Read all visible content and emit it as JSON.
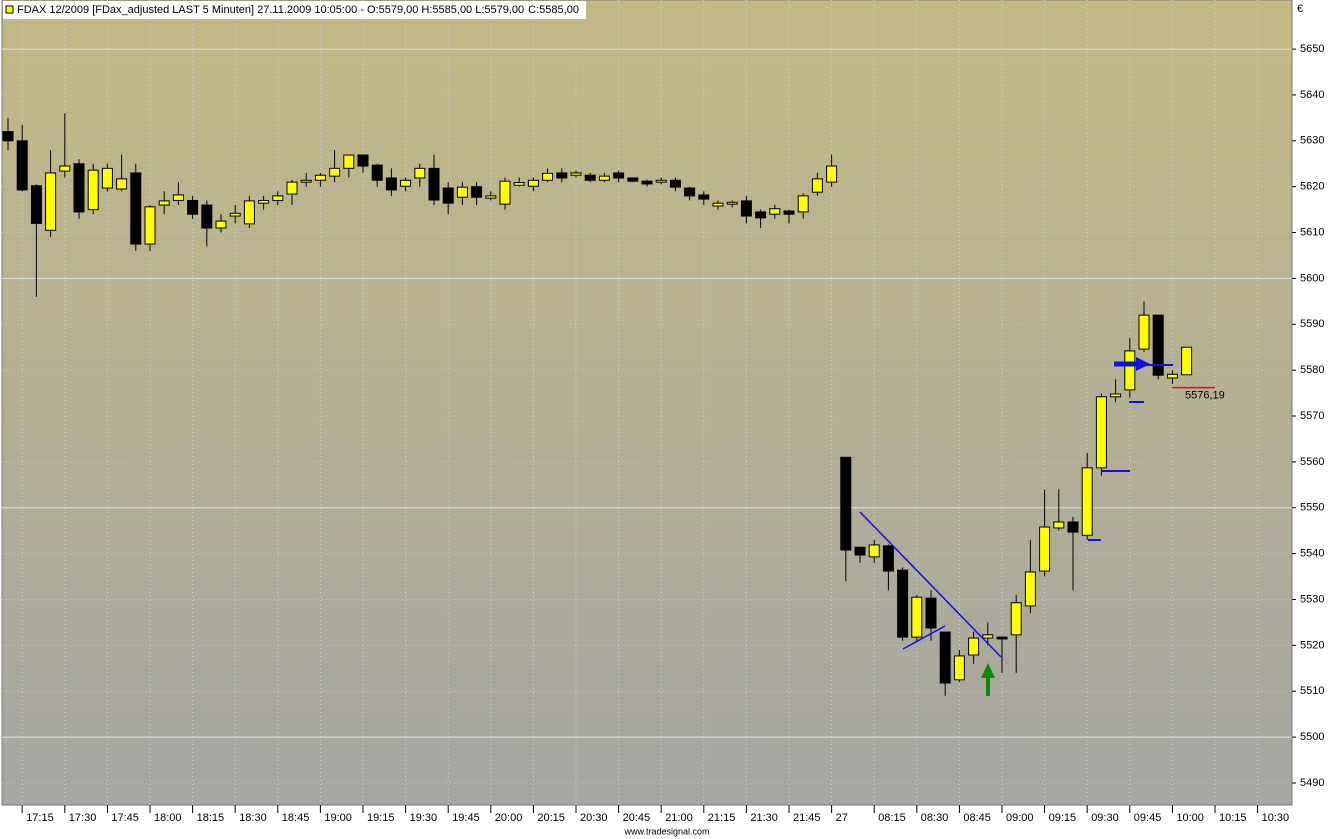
{
  "chart_data": {
    "type": "candlestick",
    "title": "FDAX 12/2009 [FDax_adjusted LAST 5 Minuten] 27.11.2009 10:05:00 - O:5579,00 H:5585,00 L:5579,00",
    "last_close": "C:5585,00",
    "last_close_color": "#00b000",
    "currency": "€",
    "footer": "www.tradesignal.com",
    "categories": [
      null,
      "17:15",
      null,
      null,
      "17:30",
      null,
      null,
      "17:45",
      null,
      null,
      "18:00",
      null,
      null,
      "18:15",
      null,
      null,
      "18:30",
      null,
      null,
      "18:45",
      null,
      null,
      "19:00",
      null,
      null,
      "19:15",
      null,
      null,
      "19:30",
      null,
      null,
      "19:45",
      null,
      null,
      "20:00",
      null,
      null,
      "20:15",
      null,
      null,
      "20:30",
      null,
      null,
      "20:45",
      null,
      null,
      "21:00",
      null,
      null,
      "21:15",
      null,
      null,
      "21:30",
      null,
      null,
      "21:45",
      null,
      null,
      "27",
      null,
      null,
      "08:15",
      null,
      null,
      "08:30",
      null,
      null,
      "08:45",
      null,
      null,
      "09:00",
      null,
      null,
      "09:15",
      null,
      null,
      "09:30",
      null,
      null,
      "09:45",
      null,
      null,
      "10:00",
      null,
      null,
      "10:15",
      null,
      null,
      "10:30",
      null,
      null
    ],
    "open": [
      5632,
      5630,
      5620.2,
      5610.5,
      5623.4,
      5625,
      5615,
      5619.7,
      5619.5,
      5623,
      5607.5,
      5616,
      5617,
      5617,
      5616,
      5611,
      5613.6,
      5611.9,
      5616.4,
      5617,
      5618.4,
      5621,
      5621.4,
      5622.3,
      5624,
      5626.9,
      5624.7,
      5621.9,
      5620.1,
      5621.9,
      5624,
      5619.7,
      5617.7,
      5620,
      5617.5,
      5616.2,
      5620.3,
      5620.1,
      5621.4,
      5623,
      5622.5,
      5622.5,
      5621.4,
      5623,
      5621.9,
      5621.2,
      5621,
      5621.4,
      5619.7,
      5618.2,
      5615.8,
      5616.2,
      5616.9,
      5614.5,
      5614,
      5614.7,
      5614.5,
      5618.8,
      5621,
      5561,
      5541.4,
      5539.3,
      5541.7,
      5536.4,
      5521.8,
      5530.3,
      5522.9,
      5512.5,
      5517.9,
      5521.6,
      5521.8,
      5522.3,
      5528.6,
      5536.2,
      5545.6,
      5546.9,
      5544,
      5558.7,
      5574.2,
      5575.7,
      5584.6,
      5592,
      5578.3,
      5579,
      null,
      null,
      null,
      null,
      null,
      null,
      null
    ],
    "high": [
      5635,
      5633.5,
      5620.5,
      5628,
      5636,
      5626,
      5625,
      5625,
      5627,
      5625,
      5616,
      5619,
      5621,
      5618,
      5617,
      5614,
      5616,
      5618,
      5618,
      5619,
      5621.5,
      5623,
      5623,
      5628,
      5627,
      5627,
      5625,
      5624,
      5622,
      5625,
      5627,
      5621,
      5621,
      5621,
      5619,
      5622,
      5622,
      5622,
      5624,
      5624,
      5623.5,
      5623,
      5623,
      5623.5,
      5622,
      5621.5,
      5622,
      5622,
      5620,
      5619,
      5617,
      5617,
      5618,
      5615,
      5616,
      5615,
      5618.5,
      5623,
      5627,
      5561,
      5541.5,
      5543,
      5542,
      5537,
      5531,
      5532,
      5523,
      5519,
      5523,
      5525,
      5522,
      5531,
      5543,
      5554,
      5554,
      5548,
      5562,
      5575,
      5578,
      5587,
      5595,
      5592,
      5580,
      5585,
      null,
      null,
      null,
      null,
      null,
      null,
      null
    ],
    "low": [
      5628,
      5619,
      5596,
      5609,
      5622,
      5613,
      5614,
      5619,
      5619,
      5606,
      5606,
      5614,
      5616,
      5613,
      5607,
      5610,
      5612,
      5611,
      5615,
      5616,
      5616,
      5620,
      5620,
      5621,
      5622,
      5623,
      5620,
      5618,
      5619,
      5620,
      5616,
      5614,
      5616,
      5616,
      5617,
      5615,
      5620,
      5619,
      5621,
      5621,
      5622,
      5621,
      5621,
      5621,
      5621,
      5620,
      5620.5,
      5619,
      5617,
      5616,
      5615,
      5615.5,
      5612,
      5611,
      5613,
      5612,
      5613,
      5618,
      5620,
      5534,
      5538,
      5538,
      5532,
      5521,
      5521,
      5521,
      5509,
      5512,
      5516,
      5520,
      5514,
      5514,
      5527,
      5535,
      5545,
      5532,
      5543,
      5557,
      5573,
      5574,
      5584,
      5578,
      5577,
      5579,
      null,
      null,
      null,
      null,
      null,
      null,
      null
    ],
    "close": [
      5630,
      5619.3,
      5612,
      5623,
      5624.5,
      5614.5,
      5623.6,
      5624,
      5621.7,
      5607.5,
      5615.6,
      5616.9,
      5618.2,
      5614,
      5611,
      5612.5,
      5614.2,
      5616.9,
      5617,
      5618,
      5621,
      5621.4,
      5622.5,
      5624,
      5626.9,
      5624.5,
      5621.4,
      5619.3,
      5621.4,
      5624,
      5617.1,
      5616.4,
      5619.9,
      5617.7,
      5618,
      5621.2,
      5620.9,
      5621.4,
      5622.9,
      5621.9,
      5623,
      5621.4,
      5622.3,
      5621.9,
      5621.2,
      5620.6,
      5621.4,
      5619.9,
      5618,
      5617.3,
      5616.4,
      5616.6,
      5613.6,
      5613.2,
      5615.2,
      5614,
      5618,
      5621.7,
      5624.5,
      5540.8,
      5539.7,
      5541.9,
      5536.2,
      5521.8,
      5530.5,
      5523.8,
      5511.8,
      5517.7,
      5521.6,
      5522.3,
      5521.4,
      5529.3,
      5536,
      5545.8,
      5546.9,
      5544.7,
      5558.7,
      5574.2,
      5574.8,
      5584.2,
      5592,
      5578.9,
      5579.1,
      5585,
      null,
      null,
      null,
      null,
      null,
      null,
      null
    ],
    "up_color": "#ffff00",
    "down_color": "#000000",
    "ylim": [
      5485.2,
      5660.7
    ],
    "yticks": [
      5490,
      5500,
      5510,
      5520,
      5530,
      5540,
      5550,
      5560,
      5570,
      5580,
      5590,
      5600,
      5610,
      5620,
      5630,
      5640,
      5650
    ],
    "grid": true,
    "price_line": {
      "value": 5576.19,
      "label": "5576,19",
      "color": "#ff0000"
    }
  }
}
